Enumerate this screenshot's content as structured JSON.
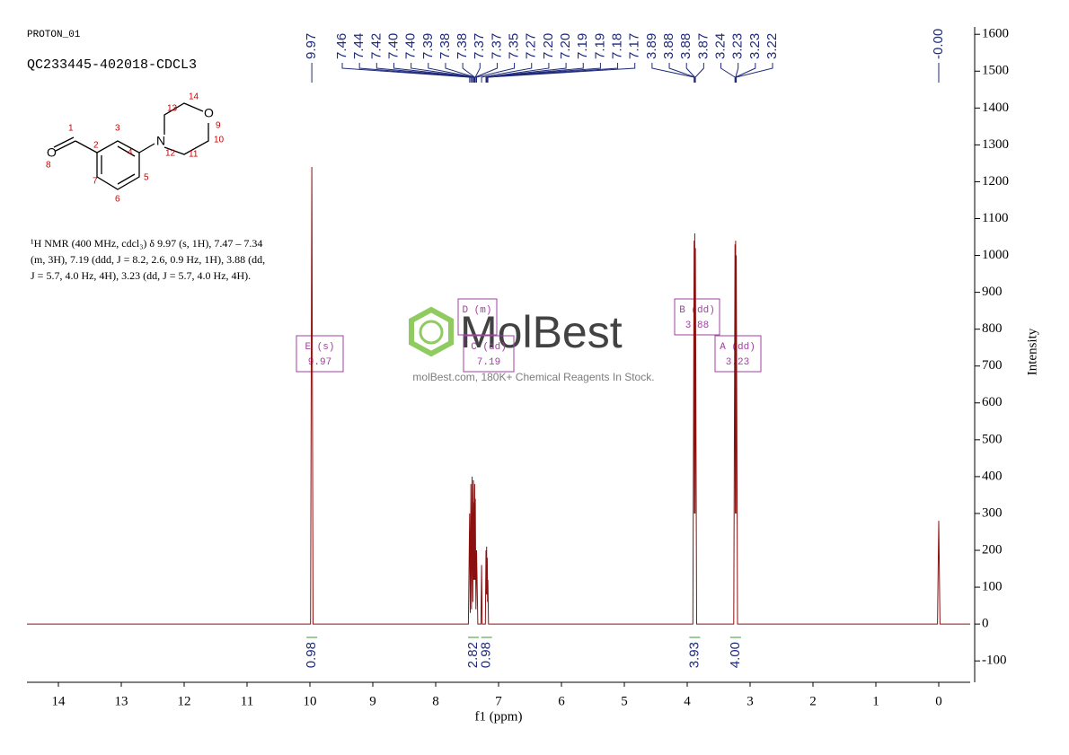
{
  "header": {
    "sample": "PROTON_01",
    "id": "QC233445-402018-CDCL3"
  },
  "structure": {
    "labels": [
      "O",
      "8",
      "1",
      "2",
      "3",
      "4",
      "5",
      "6",
      "7",
      "N",
      "12",
      "13",
      "14",
      "O",
      "9",
      "10",
      "11"
    ]
  },
  "description": [
    "¹H NMR (400 MHz, cdcl₃) δ 9.97 (s, 1H), 7.47 – 7.34",
    "(m, 3H), 7.19 (ddd, J = 8.2, 2.6, 0.9 Hz, 1H), 3.88 (dd,",
    "J = 5.7, 4.0 Hz, 4H), 3.23 (dd, J = 5.7, 4.0 Hz, 4H)."
  ],
  "watermark": {
    "brand": "MolBest",
    "tagline": "molBest.com, 180K+ Chemical Reagents In Stock."
  },
  "multiplets": [
    {
      "name": "E (s)",
      "shift": 9.97
    },
    {
      "name": "D (m)"
    },
    {
      "name": "C (dd)",
      "shift": 7.19
    },
    {
      "name": "B (dd)",
      "shift": 3.88
    },
    {
      "name": "A (dd)",
      "shift": 3.23
    }
  ],
  "chart_data": {
    "type": "line",
    "xlabel": "f1 (ppm)",
    "ylabel": "Intensity",
    "xlim": [
      14.5,
      -0.5
    ],
    "ylim": [
      -158,
      1620
    ],
    "xticks": [
      14,
      13,
      12,
      11,
      10,
      9,
      8,
      7,
      6,
      5,
      4,
      3,
      2,
      1,
      0
    ],
    "yticks": [
      -100,
      0,
      100,
      200,
      300,
      400,
      500,
      600,
      700,
      800,
      900,
      1000,
      1100,
      1200,
      1300,
      1400,
      1500,
      1600
    ],
    "series": [
      {
        "color": "#8b1010",
        "x": [
          14.5,
          9.99,
          9.97,
          9.95,
          7.48,
          7.46,
          7.45,
          7.44,
          7.43,
          7.42,
          7.41,
          7.4,
          7.395,
          7.39,
          7.385,
          7.38,
          7.375,
          7.37,
          7.36,
          7.35,
          7.33,
          7.28,
          7.27,
          7.26,
          7.21,
          7.2,
          7.195,
          7.19,
          7.185,
          7.18,
          7.175,
          7.17,
          7.16,
          3.91,
          3.89,
          3.885,
          3.88,
          3.875,
          3.87,
          3.85,
          3.26,
          3.24,
          3.235,
          3.23,
          3.225,
          3.22,
          3.2,
          0.02,
          0,
          -0.02,
          -0.5
        ],
        "values": [
          0,
          0,
          1240,
          0,
          0,
          300,
          30,
          380,
          40,
          400,
          60,
          390,
          120,
          330,
          120,
          380,
          120,
          340,
          40,
          200,
          0,
          0,
          160,
          0,
          0,
          200,
          80,
          210,
          80,
          180,
          60,
          120,
          0,
          0,
          1040,
          300,
          1060,
          300,
          1020,
          0,
          0,
          1030,
          300,
          1040,
          300,
          1000,
          0,
          0,
          280,
          0,
          0
        ]
      }
    ],
    "peak_labels": {
      "values": [
        9.97,
        7.46,
        7.44,
        7.42,
        7.4,
        7.4,
        7.39,
        7.38,
        7.38,
        7.37,
        7.37,
        7.35,
        7.27,
        7.2,
        7.2,
        7.19,
        7.19,
        7.18,
        7.17,
        3.89,
        3.88,
        3.88,
        3.87,
        3.24,
        3.23,
        3.23,
        3.22,
        0
      ],
      "value_labels": [
        "9.97",
        "7.46",
        "7.44",
        "7.42",
        "7.40",
        "7.40",
        "7.39",
        "7.38",
        "7.38",
        "7.37",
        "7.37",
        "7.35",
        "7.27",
        "7.20",
        "7.20",
        "7.19",
        "7.19",
        "7.18",
        "7.17",
        "3.89",
        "3.88",
        "3.88",
        "3.87",
        "3.24",
        "3.23",
        "3.23",
        "3.22",
        "-0.00"
      ]
    },
    "integrals": {
      "x": [
        9.97,
        7.4,
        7.19,
        3.88,
        3.23
      ],
      "values": [
        0.98,
        2.82,
        0.98,
        3.93,
        4.0
      ],
      "value_labels": [
        "0.98",
        "2.82",
        "0.98",
        "3.93",
        "4.00"
      ]
    }
  }
}
